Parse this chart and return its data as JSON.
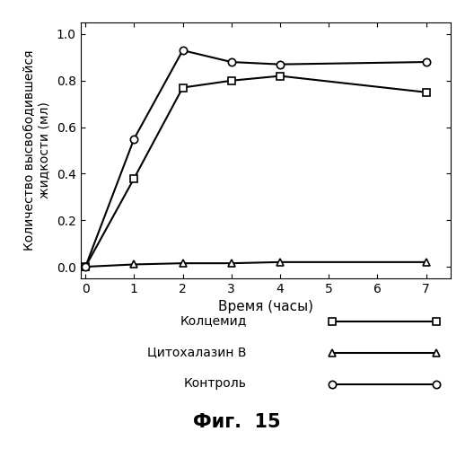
{
  "title": "Фиг.  15",
  "xlabel": "Время (часы)",
  "ylabel": "Количество высвободившейся\nжидкости (мл)",
  "xlim": [
    -0.1,
    7.5
  ],
  "ylim": [
    -0.05,
    1.05
  ],
  "yticks": [
    0.0,
    0.2,
    0.4,
    0.6,
    0.8,
    1.0
  ],
  "xticks": [
    0,
    1,
    2,
    3,
    4,
    5,
    6,
    7
  ],
  "series": [
    {
      "label": "Колцемид",
      "x": [
        0,
        1,
        2,
        3,
        4,
        7
      ],
      "y": [
        0.0,
        0.38,
        0.77,
        0.8,
        0.82,
        0.75
      ],
      "marker": "s",
      "color": "#000000",
      "markersize": 6,
      "linewidth": 1.5,
      "markerfacecolor": "white"
    },
    {
      "label": "Цитохалазин В",
      "x": [
        0,
        1,
        2,
        3,
        4,
        7
      ],
      "y": [
        0.0,
        0.01,
        0.015,
        0.015,
        0.02,
        0.02
      ],
      "marker": "^",
      "color": "#000000",
      "markersize": 6,
      "linewidth": 1.5,
      "markerfacecolor": "white"
    },
    {
      "label": "Контроль",
      "x": [
        0,
        1,
        2,
        3,
        4,
        7
      ],
      "y": [
        0.0,
        0.55,
        0.93,
        0.88,
        0.87,
        0.88
      ],
      "marker": "o",
      "color": "#000000",
      "markersize": 6,
      "linewidth": 1.5,
      "markerfacecolor": "white"
    }
  ],
  "background_color": "#ffffff",
  "legend_labels": [
    "Колцемид",
    "Цитохалазин В",
    "Контроль"
  ],
  "legend_markers": [
    "s",
    "^",
    "o"
  ]
}
